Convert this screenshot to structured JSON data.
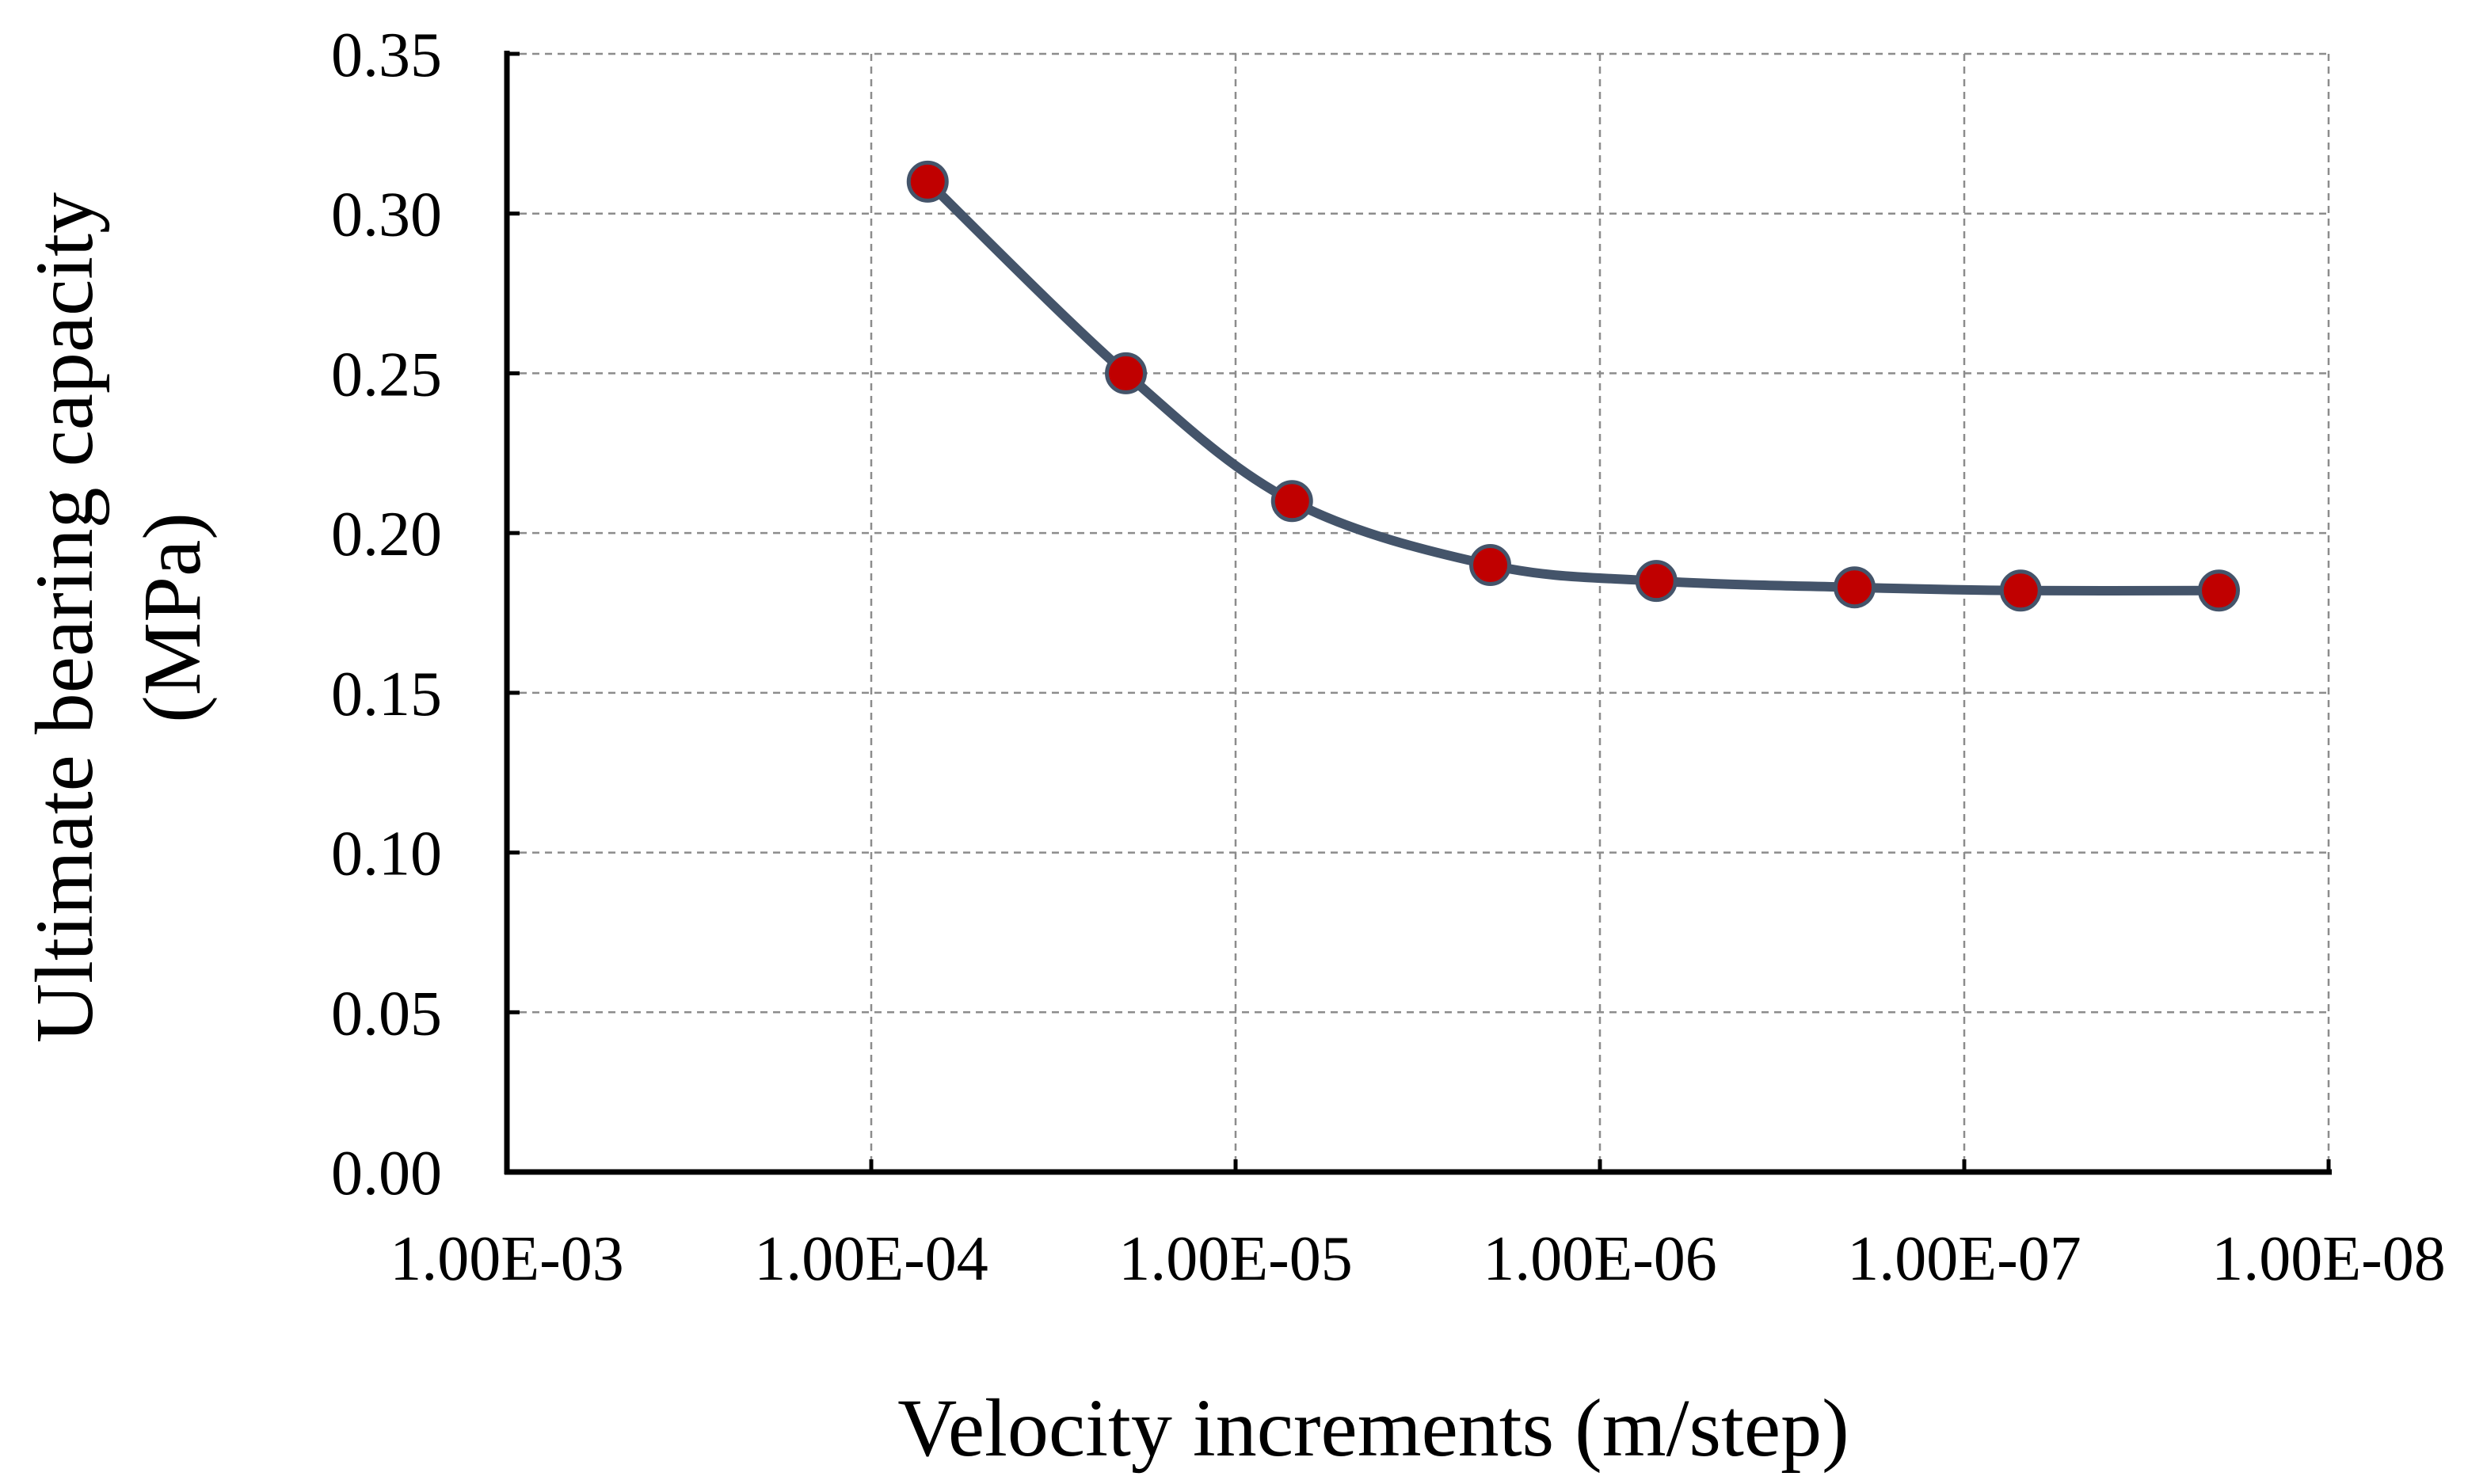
{
  "chart_data": {
    "type": "line",
    "title": "",
    "xlabel": "Velocity increments (m/step)",
    "ylabel_line1": "Ultimate bearing capacity",
    "ylabel_line2": "(MPa)",
    "x_scale": "log-reversed",
    "x_ticks": [
      {
        "value": 0.001,
        "label": "1.00E-03"
      },
      {
        "value": 0.0001,
        "label": "1.00E-04"
      },
      {
        "value": 1e-05,
        "label": "1.00E-05"
      },
      {
        "value": 1e-06,
        "label": "1.00E-06"
      },
      {
        "value": 1e-07,
        "label": "1.00E-07"
      },
      {
        "value": 1e-08,
        "label": "1.00E-08"
      }
    ],
    "y_ticks": [
      {
        "value": 0.0,
        "label": "0.00"
      },
      {
        "value": 0.05,
        "label": "0.05"
      },
      {
        "value": 0.1,
        "label": "0.10"
      },
      {
        "value": 0.15,
        "label": "0.15"
      },
      {
        "value": 0.2,
        "label": "0.20"
      },
      {
        "value": 0.25,
        "label": "0.25"
      },
      {
        "value": 0.3,
        "label": "0.30"
      },
      {
        "value": 0.35,
        "label": "0.35"
      }
    ],
    "xlim": [
      0.001,
      1e-08
    ],
    "ylim": [
      0,
      0.35
    ],
    "grid": true,
    "series": [
      {
        "name": "Ultimate bearing capacity",
        "smooth": true,
        "line_color": "#44546a",
        "marker_color": "#c00000",
        "marker_edge": "#44546a",
        "points": [
          {
            "x": 7e-05,
            "y": 0.31
          },
          {
            "x": 2e-05,
            "y": 0.25
          },
          {
            "x": 7e-06,
            "y": 0.21
          },
          {
            "x": 2e-06,
            "y": 0.19
          },
          {
            "x": 7e-07,
            "y": 0.185
          },
          {
            "x": 2e-07,
            "y": 0.183
          },
          {
            "x": 7e-08,
            "y": 0.182
          },
          {
            "x": 2e-08,
            "y": 0.182
          }
        ]
      }
    ]
  }
}
